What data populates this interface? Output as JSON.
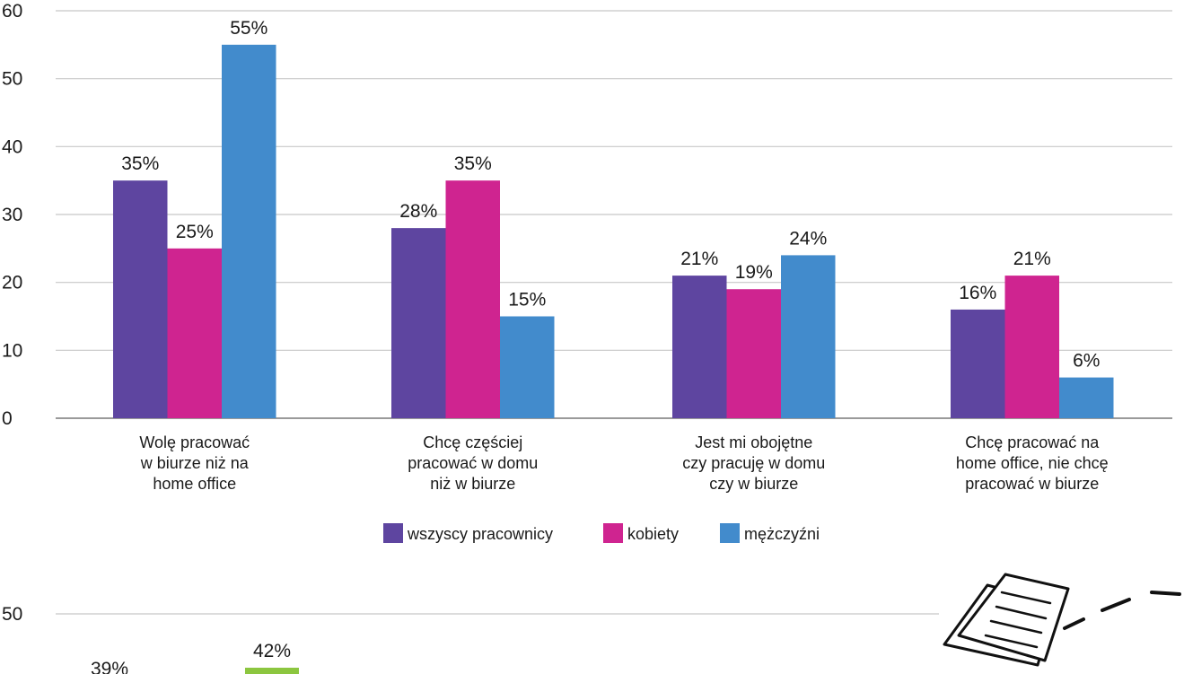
{
  "colors": {
    "wszyscy": "#5e45a0",
    "kobiety": "#cf2490",
    "mezczyzni": "#428bcc",
    "green": "#8cc63f",
    "grid": "#c8c8c8",
    "axis": "#9a9a9a"
  },
  "icons": [
    "papers-icon"
  ],
  "chart_data": [
    {
      "type": "bar",
      "categories": [
        [
          "Wolę pracować",
          "w biurze niż na",
          "home office"
        ],
        [
          "Chcę częściej",
          "pracować w domu",
          "niż w biurze"
        ],
        [
          "Jest mi obojętne",
          "czy pracuję w domu",
          "czy w biurze"
        ],
        [
          "Chcę pracować na",
          "home office, nie chcę",
          "pracować w biurze"
        ]
      ],
      "series": [
        {
          "name": "wszyscy pracownicy",
          "values": [
            35,
            28,
            21,
            16
          ],
          "labels": [
            "35%",
            "28%",
            "21%",
            "16%"
          ],
          "color_key": "wszyscy"
        },
        {
          "name": "kobiety",
          "values": [
            25,
            35,
            19,
            21
          ],
          "labels": [
            "25%",
            "35%",
            "19%",
            "21%"
          ],
          "color_key": "kobiety"
        },
        {
          "name": "mężczyźni",
          "values": [
            55,
            15,
            24,
            6
          ],
          "labels": [
            "55%",
            "15%",
            "24%",
            "6%"
          ],
          "color_key": "mezczyzni"
        }
      ],
      "ylim": [
        0,
        60
      ],
      "yticks": [
        "0",
        "10",
        "20",
        "30",
        "40",
        "50",
        "60"
      ],
      "grid": true,
      "legend_position": "bottom-center"
    },
    {
      "type": "bar",
      "partial": true,
      "yticks": [
        "50"
      ],
      "data_labels": [
        "39%",
        "42%"
      ],
      "grid": true
    }
  ]
}
